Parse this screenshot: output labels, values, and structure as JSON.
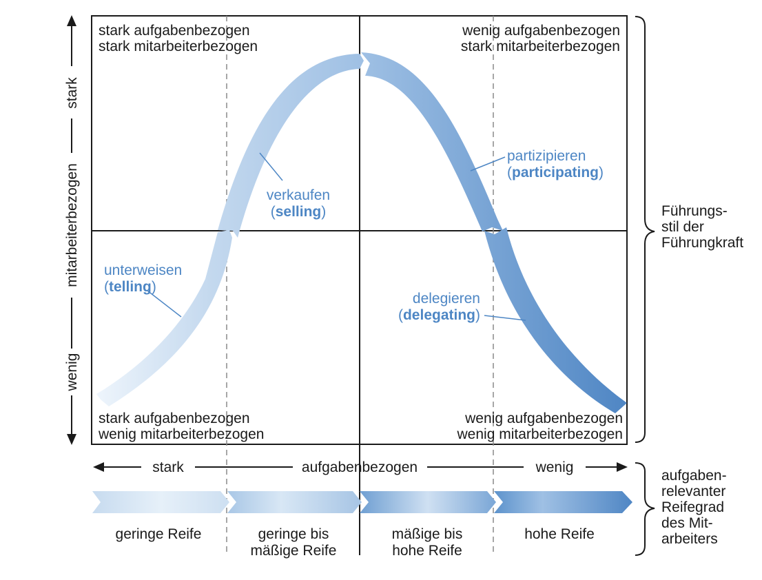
{
  "quadrants": {
    "top_left": [
      "stark aufgabenbezogen",
      "stark mitarbeiterbezogen"
    ],
    "top_right": [
      "wenig aufgabenbezogen",
      "stark mitarbeiterbezogen"
    ],
    "bottom_left": [
      "stark aufgabenbezogen",
      "wenig mitarbeiterbezogen"
    ],
    "bottom_right": [
      "wenig aufgabenbezogen",
      "wenig mitarbeiterbezogen"
    ]
  },
  "styles": {
    "telling": {
      "de": "unterweisen",
      "en_open": "(",
      "en": "telling",
      "en_close": ")"
    },
    "selling": {
      "de": "verkaufen",
      "en_open": "(",
      "en": "selling",
      "en_close": ")"
    },
    "participating": {
      "de": "partizipieren",
      "en_open": "(",
      "en": "participating",
      "en_close": ")"
    },
    "delegating": {
      "de": "delegieren",
      "en_open": "(",
      "en": "delegating",
      "en_close": ")"
    }
  },
  "y_axis": {
    "top": "stark",
    "middle": "mitarbeiterbezogen",
    "bottom": "wenig"
  },
  "x_axis": {
    "left": "stark",
    "middle": "aufgabenbezogen",
    "right": "wenig"
  },
  "right_brace_top": [
    "Führungs-",
    "stil der",
    "Führungkraft"
  ],
  "right_brace_bottom": [
    "aufgaben-",
    "relevanter",
    "Reifegrad",
    "des Mit-",
    "arbeiters"
  ],
  "maturity": [
    [
      "geringe Reife"
    ],
    [
      "geringe bis",
      "mäßige Reife"
    ],
    [
      "mäßige bis",
      "hohe Reife"
    ],
    [
      "hohe Reife"
    ]
  ],
  "colors": {
    "arrow_light": "#e8f1fa",
    "arrow_dark": "#4f86c4",
    "label_blue": "#4d86c4",
    "line": "#1a1a1a",
    "dash": "#888888"
  }
}
